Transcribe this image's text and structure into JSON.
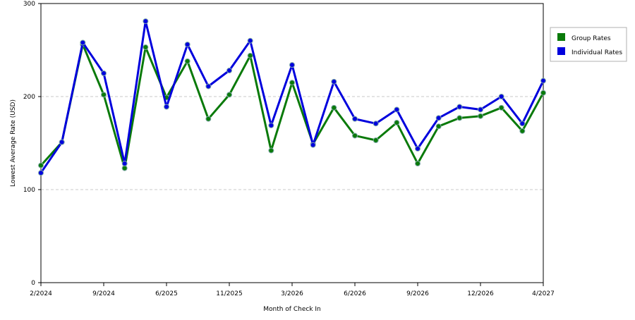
{
  "chart_data": {
    "type": "line",
    "title": "",
    "xlabel": "Month of Check In",
    "ylabel": "Lowest Average Rate (USD)",
    "ylim": [
      0,
      300
    ],
    "y_ticks": [
      0,
      100,
      200,
      300
    ],
    "y_tick_labels": [
      "0",
      "100",
      "200",
      "300"
    ],
    "x_ticks": [
      {
        "index": 0,
        "label": "2/2024"
      },
      {
        "index": 3,
        "label": "9/2024"
      },
      {
        "index": 6,
        "label": "6/2025"
      },
      {
        "index": 9,
        "label": "11/2025"
      },
      {
        "index": 12,
        "label": "3/2026"
      },
      {
        "index": 15,
        "label": "6/2026"
      },
      {
        "index": 18,
        "label": "9/2026"
      },
      {
        "index": 21,
        "label": "12/2026"
      },
      {
        "index": 24,
        "label": "4/2027"
      }
    ],
    "grid": true,
    "grid_style": "dashed horizontal",
    "legend_position": "top-right",
    "series": [
      {
        "name": "Group Rates",
        "color": "#0a7a0a",
        "values": [
          126,
          151,
          256,
          202,
          123,
          253,
          199,
          238,
          176,
          202,
          244,
          142,
          215,
          149,
          188,
          158,
          153,
          172,
          128,
          168,
          177,
          179,
          188,
          163,
          204
        ]
      },
      {
        "name": "Individual Rates",
        "color": "#0000dd",
        "values": [
          118,
          151,
          258,
          225,
          128,
          281,
          189,
          256,
          211,
          228,
          260,
          169,
          234,
          148,
          216,
          176,
          171,
          186,
          144,
          177,
          189,
          186,
          200,
          171,
          217
        ]
      }
    ]
  }
}
